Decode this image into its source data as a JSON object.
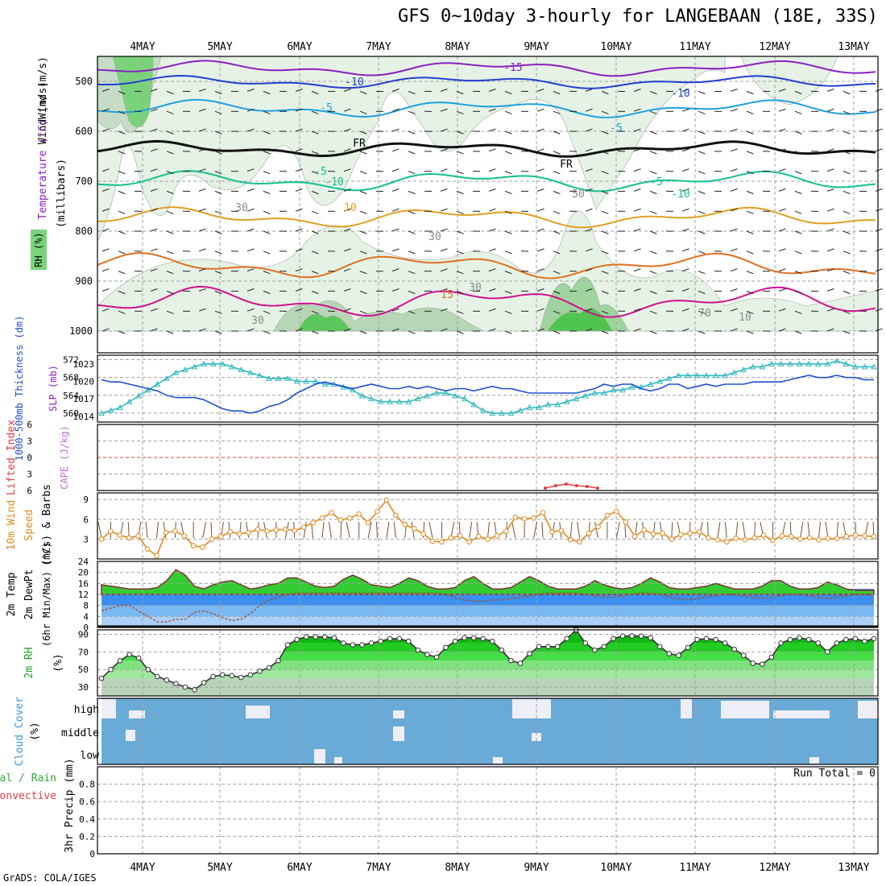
{
  "title": "GFS 0~10day 3-hourly for LANGEBAAN (18E, 33S)",
  "credit": "GrADS: COLA/IGES",
  "colors": {
    "grid": "#a0a0a0",
    "temperature": "#e07030",
    "wind": "#2040c0",
    "rh_fill": "#7ad37a",
    "thickness": "#2050d0",
    "slp": "#30b8c0",
    "lifted_index": "#e04040",
    "cape": "#c070d0",
    "wind10": "#e08a20",
    "t2m_fill": "#33cc33",
    "dewpt_fill": "#3a8ff0",
    "rh2m_fill": "#22cc22",
    "cloud": "#6aaad6",
    "cloud_gap": "#eeeef6"
  },
  "time_axis": {
    "days": [
      "4MAY",
      "5MAY",
      "6MAY",
      "7MAY",
      "8MAY",
      "9MAY",
      "10MAY",
      "11MAY",
      "12MAY",
      "13MAY"
    ]
  },
  "panels": {
    "upper_air": {
      "ylabel_units": "(millibars)",
      "ylabel_rh": "RH (%)",
      "ylabel_temp": "Temperature (°C)",
      "ylabel_wind": "Wind (m/s)",
      "ticks": [
        "500",
        "600",
        "700",
        "800",
        "900",
        "1000"
      ],
      "contour_labels": [
        "-15",
        "-10",
        "-10",
        "-5",
        "-5",
        "FR",
        "FR",
        "-5",
        "-5",
        "-10",
        "-10",
        "10",
        "15",
        "50",
        "30",
        "30",
        "30",
        "30",
        "70",
        "10"
      ]
    },
    "thickness_slp": {
      "ylabel_left": "1000-500mb Thickness (dm)",
      "ylabel_right": "SLP (mb)",
      "ticks_left": [
        "572",
        "568",
        "564",
        "560"
      ],
      "ticks_right": [
        "1023",
        "1020",
        "1017",
        "1014"
      ]
    },
    "li_cape": {
      "ylabel_left": "Lifted Index",
      "ylabel_right": "CAPE (J/kg)",
      "ticks": [
        "6",
        "3",
        "0",
        "3",
        "6"
      ]
    },
    "wind10": {
      "ylabel_left": "10m Wind",
      "ylabel_mid": "Speed",
      "ylabel_right": "(m/s) & Barbs",
      "ticks": [
        "9",
        "6",
        "3"
      ]
    },
    "temp2m": {
      "ylabel_1": "2m Temp",
      "ylabel_2": "2m DewPt",
      "ylabel_3": "(6hr Min/Max) (°C)",
      "ticks": [
        "24",
        "20",
        "16",
        "12",
        "8",
        "4",
        "0"
      ]
    },
    "rh2m": {
      "ylabel": "2m RH",
      "units": "(%)",
      "ticks": [
        "90",
        "70",
        "50",
        "30"
      ]
    },
    "cloud": {
      "ylabel": "Cloud Cover",
      "units": "(%)",
      "levels": [
        "high",
        "middle",
        "low"
      ]
    },
    "precip": {
      "ylabel_1": "Total / Rain",
      "ylabel_2": "Convective",
      "ylabel_3": "3hr Precip (mm)",
      "ticks": [
        "0.8",
        "0.6",
        "0.4",
        "0.2",
        "0"
      ],
      "run_total": "Run Total = 0"
    }
  },
  "chart_data": [
    {
      "type": "line",
      "title": "1000-500mb Thickness",
      "ylabel": "1000-500mb Thickness (dm)",
      "ylim": [
        558,
        573
      ],
      "x_start": "3.5MAY",
      "x_step_hours": 3,
      "series": [
        {
          "name": "Thickness",
          "values": [
            567.5,
            567,
            567,
            566.5,
            566,
            565.5,
            565,
            564,
            563.5,
            563.5,
            563.5,
            563,
            562,
            561,
            560.5,
            560.5,
            560,
            560.5,
            561.5,
            562,
            563,
            564.5,
            565.5,
            566.5,
            567,
            566.5,
            566,
            565.5,
            566,
            566.5,
            566,
            565.5,
            565.5,
            566,
            565.5,
            566,
            565.5,
            565,
            565.5,
            565.5,
            565,
            565.5,
            566,
            565.5,
            565.5,
            565,
            564.5,
            564.5,
            564.5,
            564.5,
            564.5,
            564.5,
            565,
            565.5,
            566.5,
            566,
            566.5,
            566.5,
            565.5,
            565,
            565.5,
            566.5,
            566.5,
            565.5,
            566,
            566.5,
            566,
            566.5,
            566.5,
            566.5,
            567,
            567,
            567,
            567,
            567.5,
            568,
            568.5,
            568,
            568,
            568.5,
            568,
            568,
            567.5,
            567.5
          ]
        }
      ]
    },
    {
      "type": "line",
      "title": "SLP",
      "ylabel": "SLP (mb)",
      "ylim": [
        1013,
        1024.5
      ],
      "series": [
        {
          "name": "SLP",
          "values": [
            1014.5,
            1015,
            1015.5,
            1016.5,
            1017.5,
            1018.5,
            1019.5,
            1020.5,
            1021.5,
            1022,
            1022.5,
            1023,
            1023,
            1023,
            1022.5,
            1022,
            1021.5,
            1021,
            1020.5,
            1020.5,
            1020.5,
            1020,
            1020,
            1020,
            1019.5,
            1019.5,
            1019,
            1018.5,
            1017.5,
            1017,
            1016.5,
            1016.5,
            1016.5,
            1016.5,
            1017,
            1017.5,
            1018,
            1018,
            1017.5,
            1017,
            1016,
            1015,
            1014.5,
            1014.5,
            1014.5,
            1015,
            1015.5,
            1015.5,
            1016,
            1016,
            1016.5,
            1017,
            1017.5,
            1018,
            1018,
            1018.5,
            1018.5,
            1019,
            1019,
            1019.5,
            1020,
            1020.5,
            1021,
            1021,
            1021,
            1021,
            1021,
            1021,
            1021.5,
            1022,
            1022.5,
            1022.5,
            1023,
            1023,
            1023,
            1023,
            1023,
            1023,
            1023,
            1023.5,
            1023,
            1022.5,
            1022.5,
            1022.5
          ]
        }
      ]
    },
    {
      "type": "line",
      "title": "10m Wind Speed",
      "ylabel": "(m/s)",
      "ylim": [
        0,
        10
      ],
      "series": [
        {
          "name": "10m Wind Speed",
          "values": [
            3,
            4.2,
            3.6,
            3.2,
            3.5,
            1.5,
            0.5,
            4,
            4.2,
            3.5,
            2,
            1.8,
            3,
            3.4,
            4.1,
            3.8,
            4,
            4.5,
            4.2,
            4.4,
            4.5,
            4.3,
            4.8,
            5.5,
            6.2,
            7,
            5.9,
            6.2,
            6.8,
            5.5,
            7.2,
            8.9,
            6.6,
            5.2,
            4.6,
            3.8,
            2.7,
            2.6,
            3.2,
            3.5,
            2.6,
            3.4,
            3,
            3.5,
            4.2,
            6.3,
            6.1,
            6.2,
            7,
            4.1,
            4.3,
            2.9,
            2.6,
            3.9,
            4.9,
            6.6,
            7.2,
            5.6,
            3.4,
            4.4,
            3.8,
            3.9,
            3,
            3.7,
            3.9,
            4.1,
            3.2,
            2.9,
            2.6,
            3.1,
            2.9,
            3.2,
            3.6,
            2.8,
            3.5,
            3.4,
            3,
            3.2,
            2.9,
            3.1,
            3.1,
            3.4,
            3.6,
            3.5,
            3.4
          ]
        }
      ]
    },
    {
      "type": "area",
      "title": "2m Temp / DewPt",
      "ylabel": "(°C)",
      "ylim": [
        0,
        24
      ],
      "series": [
        {
          "name": "2m Temp",
          "values": [
            15.5,
            15,
            14.5,
            14,
            14,
            14,
            14.5,
            17,
            21,
            19,
            15,
            14,
            15.5,
            16.5,
            17,
            15.5,
            14,
            14.5,
            15.5,
            16,
            18,
            18,
            16.5,
            15,
            14.5,
            15,
            17.5,
            19,
            17.5,
            15.5,
            15,
            14.5,
            16,
            18,
            17,
            15,
            14,
            14,
            14.5,
            17,
            18.5,
            16,
            14,
            14,
            14.5,
            16.5,
            18.5,
            17,
            15,
            14,
            14,
            14,
            15,
            17,
            15.5,
            14.5,
            14,
            14.5,
            16,
            18,
            16.5,
            14.5,
            14,
            14,
            14.5,
            15,
            16,
            15,
            14,
            14,
            14,
            15,
            17,
            17,
            15,
            14,
            14,
            14.5,
            16.5,
            15.5,
            14,
            13.5,
            13.5,
            13.5
          ]
        },
        {
          "name": "2m DewPt",
          "values": [
            6,
            7,
            8,
            8,
            6,
            4,
            2,
            2,
            3,
            3,
            5.5,
            6,
            5,
            3.5,
            2.5,
            3,
            5,
            8,
            10,
            11,
            12,
            12.5,
            12.5,
            12.5,
            12.5,
            12.5,
            12.5,
            12.5,
            12.5,
            12.5,
            12.5,
            12.5,
            12.5,
            12.5,
            12.5,
            12.5,
            12.5,
            12,
            11,
            10,
            9.5,
            9.5,
            10,
            10,
            10.5,
            11,
            11.5,
            12,
            12.5,
            12.5,
            12.5,
            12.5,
            12,
            11.5,
            11,
            11,
            11.5,
            12,
            12.5,
            12.5,
            12,
            11,
            10.5,
            10,
            10.5,
            11,
            11.5,
            12,
            12,
            11.5,
            11,
            10.5,
            11,
            11.5,
            12,
            12,
            11.5,
            11,
            10.5,
            11,
            11.5,
            12,
            12,
            12
          ]
        }
      ]
    },
    {
      "type": "line",
      "title": "2m RH",
      "ylabel": "(%)",
      "ylim": [
        20,
        95
      ],
      "series": [
        {
          "name": "2m RH",
          "values": [
            40,
            50,
            60,
            67,
            63,
            50,
            42,
            38,
            34,
            30,
            27,
            35,
            42,
            44,
            43,
            41,
            44,
            48,
            52,
            60,
            78,
            84,
            87,
            87,
            87,
            86,
            80,
            78,
            78,
            80,
            82,
            85,
            85,
            82,
            72,
            67,
            64,
            75,
            82,
            86,
            86,
            85,
            82,
            72,
            60,
            57,
            68,
            76,
            76,
            76,
            85,
            95,
            80,
            72,
            76,
            85,
            88,
            88,
            88,
            86,
            76,
            68,
            66,
            75,
            84,
            85,
            84,
            80,
            73,
            66,
            57,
            56,
            64,
            80,
            84,
            86,
            84,
            80,
            70,
            80,
            84,
            85,
            82,
            85
          ]
        }
      ]
    },
    {
      "type": "bar",
      "title": "3hr Precip",
      "ylabel": "3hr Precip (mm)",
      "ylim": [
        0,
        1
      ],
      "values": [
        0
      ]
    }
  ]
}
